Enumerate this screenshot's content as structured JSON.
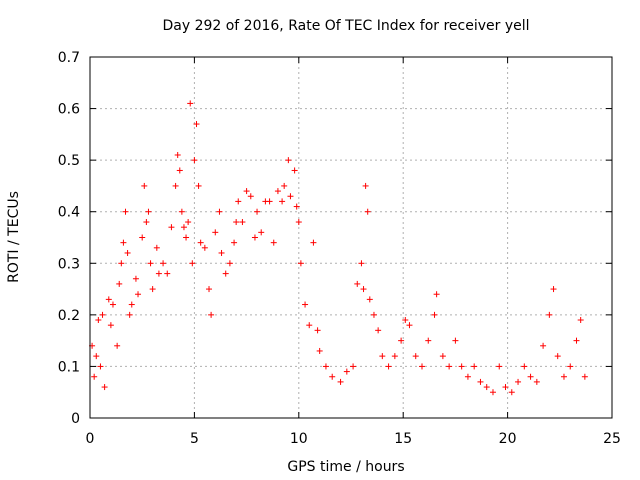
{
  "chart_data": {
    "type": "scatter",
    "title": "Day 292 of 2016, Rate Of TEC Index for receiver yell",
    "xlabel": "GPS time / hours",
    "ylabel": "ROTI / TECUs",
    "xlim": [
      0,
      25
    ],
    "ylim": [
      0,
      0.7
    ],
    "xticks": [
      0,
      5,
      10,
      15,
      20,
      25
    ],
    "xtick_labels": [
      "0",
      "5",
      "10",
      "15",
      "20",
      "25"
    ],
    "yticks": [
      0,
      0.1,
      0.2,
      0.3,
      0.4,
      0.5,
      0.6,
      0.7
    ],
    "ytick_labels": [
      "0",
      "0.1",
      "0.2",
      "0.3",
      "0.4",
      "0.5",
      "0.6",
      "0.7"
    ],
    "grid": true,
    "marker": "+",
    "color": "#ff0000",
    "series": [
      {
        "name": "ROTI",
        "points": [
          [
            0.1,
            0.14
          ],
          [
            0.2,
            0.08
          ],
          [
            0.3,
            0.12
          ],
          [
            0.4,
            0.19
          ],
          [
            0.5,
            0.1
          ],
          [
            0.6,
            0.2
          ],
          [
            0.7,
            0.06
          ],
          [
            0.9,
            0.23
          ],
          [
            1.0,
            0.18
          ],
          [
            1.1,
            0.22
          ],
          [
            1.3,
            0.14
          ],
          [
            1.4,
            0.26
          ],
          [
            1.5,
            0.3
          ],
          [
            1.6,
            0.34
          ],
          [
            1.7,
            0.4
          ],
          [
            1.8,
            0.32
          ],
          [
            1.9,
            0.2
          ],
          [
            2.0,
            0.22
          ],
          [
            2.2,
            0.27
          ],
          [
            2.3,
            0.24
          ],
          [
            2.5,
            0.35
          ],
          [
            2.6,
            0.45
          ],
          [
            2.7,
            0.38
          ],
          [
            2.8,
            0.4
          ],
          [
            2.9,
            0.3
          ],
          [
            3.0,
            0.25
          ],
          [
            3.2,
            0.33
          ],
          [
            3.3,
            0.28
          ],
          [
            3.5,
            0.3
          ],
          [
            3.7,
            0.28
          ],
          [
            3.9,
            0.37
          ],
          [
            4.1,
            0.45
          ],
          [
            4.2,
            0.51
          ],
          [
            4.3,
            0.48
          ],
          [
            4.4,
            0.4
          ],
          [
            4.5,
            0.37
          ],
          [
            4.6,
            0.35
          ],
          [
            4.7,
            0.38
          ],
          [
            4.8,
            0.61
          ],
          [
            4.9,
            0.3
          ],
          [
            5.0,
            0.5
          ],
          [
            5.1,
            0.57
          ],
          [
            5.2,
            0.45
          ],
          [
            5.3,
            0.34
          ],
          [
            5.5,
            0.33
          ],
          [
            5.7,
            0.25
          ],
          [
            5.8,
            0.2
          ],
          [
            6.0,
            0.36
          ],
          [
            6.2,
            0.4
          ],
          [
            6.3,
            0.32
          ],
          [
            6.5,
            0.28
          ],
          [
            6.7,
            0.3
          ],
          [
            6.9,
            0.34
          ],
          [
            7.0,
            0.38
          ],
          [
            7.1,
            0.42
          ],
          [
            7.3,
            0.38
          ],
          [
            7.5,
            0.44
          ],
          [
            7.7,
            0.43
          ],
          [
            7.9,
            0.35
          ],
          [
            8.0,
            0.4
          ],
          [
            8.2,
            0.36
          ],
          [
            8.4,
            0.42
          ],
          [
            8.6,
            0.42
          ],
          [
            8.8,
            0.34
          ],
          [
            9.0,
            0.44
          ],
          [
            9.2,
            0.42
          ],
          [
            9.3,
            0.45
          ],
          [
            9.5,
            0.5
          ],
          [
            9.6,
            0.43
          ],
          [
            9.8,
            0.48
          ],
          [
            9.9,
            0.41
          ],
          [
            10.0,
            0.38
          ],
          [
            10.1,
            0.3
          ],
          [
            10.3,
            0.22
          ],
          [
            10.5,
            0.18
          ],
          [
            10.7,
            0.34
          ],
          [
            10.9,
            0.17
          ],
          [
            11.0,
            0.13
          ],
          [
            11.3,
            0.1
          ],
          [
            11.6,
            0.08
          ],
          [
            12.0,
            0.07
          ],
          [
            12.3,
            0.09
          ],
          [
            12.6,
            0.1
          ],
          [
            12.8,
            0.26
          ],
          [
            13.0,
            0.3
          ],
          [
            13.1,
            0.25
          ],
          [
            13.2,
            0.45
          ],
          [
            13.3,
            0.4
          ],
          [
            13.4,
            0.23
          ],
          [
            13.6,
            0.2
          ],
          [
            13.8,
            0.17
          ],
          [
            14.0,
            0.12
          ],
          [
            14.3,
            0.1
          ],
          [
            14.6,
            0.12
          ],
          [
            14.9,
            0.15
          ],
          [
            15.1,
            0.19
          ],
          [
            15.3,
            0.18
          ],
          [
            15.6,
            0.12
          ],
          [
            15.9,
            0.1
          ],
          [
            16.2,
            0.15
          ],
          [
            16.5,
            0.2
          ],
          [
            16.6,
            0.24
          ],
          [
            16.9,
            0.12
          ],
          [
            17.2,
            0.1
          ],
          [
            17.5,
            0.15
          ],
          [
            17.8,
            0.1
          ],
          [
            18.1,
            0.08
          ],
          [
            18.4,
            0.1
          ],
          [
            18.7,
            0.07
          ],
          [
            19.0,
            0.06
          ],
          [
            19.3,
            0.05
          ],
          [
            19.6,
            0.1
          ],
          [
            19.9,
            0.06
          ],
          [
            20.2,
            0.05
          ],
          [
            20.5,
            0.07
          ],
          [
            20.8,
            0.1
          ],
          [
            21.1,
            0.08
          ],
          [
            21.4,
            0.07
          ],
          [
            21.7,
            0.14
          ],
          [
            22.0,
            0.2
          ],
          [
            22.2,
            0.25
          ],
          [
            22.4,
            0.12
          ],
          [
            22.7,
            0.08
          ],
          [
            23.0,
            0.1
          ],
          [
            23.3,
            0.15
          ],
          [
            23.5,
            0.19
          ],
          [
            23.7,
            0.08
          ]
        ]
      }
    ]
  }
}
